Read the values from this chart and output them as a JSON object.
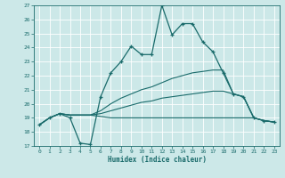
{
  "xlabel": "Humidex (Indice chaleur)",
  "xlim": [
    -0.5,
    23.5
  ],
  "ylim": [
    17,
    27
  ],
  "xticks": [
    0,
    1,
    2,
    3,
    4,
    5,
    6,
    7,
    8,
    9,
    10,
    11,
    12,
    13,
    14,
    15,
    16,
    17,
    18,
    19,
    20,
    21,
    22,
    23
  ],
  "yticks": [
    17,
    18,
    19,
    20,
    21,
    22,
    23,
    24,
    25,
    26,
    27
  ],
  "bg_color": "#cce8e8",
  "grid_color": "#b8d8d8",
  "line_color": "#1a6b6b",
  "lines": [
    {
      "x": [
        0,
        1,
        2,
        3,
        4,
        5,
        6,
        7,
        8,
        9,
        10,
        11,
        12,
        13,
        14,
        15,
        16,
        17,
        18,
        19,
        20,
        21,
        22,
        23
      ],
      "y": [
        18.5,
        19.0,
        19.3,
        19.0,
        17.2,
        17.1,
        20.5,
        22.2,
        23.0,
        24.1,
        23.5,
        23.5,
        27.0,
        24.9,
        25.7,
        25.7,
        24.4,
        23.7,
        22.2,
        20.7,
        20.5,
        19.0,
        18.8,
        18.7
      ],
      "marker": true
    },
    {
      "x": [
        0,
        1,
        2,
        3,
        4,
        5,
        6,
        7,
        8,
        9,
        10,
        11,
        12,
        13,
        14,
        15,
        16,
        17,
        18,
        19,
        20,
        21,
        22,
        23
      ],
      "y": [
        18.5,
        19.0,
        19.3,
        19.2,
        19.2,
        19.2,
        19.5,
        20.0,
        20.4,
        20.7,
        21.0,
        21.2,
        21.5,
        21.8,
        22.0,
        22.2,
        22.3,
        22.4,
        22.4,
        20.7,
        20.5,
        19.0,
        18.8,
        18.7
      ],
      "marker": false
    },
    {
      "x": [
        0,
        1,
        2,
        3,
        4,
        5,
        6,
        7,
        8,
        9,
        10,
        11,
        12,
        13,
        14,
        15,
        16,
        17,
        18,
        19,
        20,
        21,
        22,
        23
      ],
      "y": [
        18.5,
        19.0,
        19.3,
        19.2,
        19.2,
        19.2,
        19.3,
        19.5,
        19.7,
        19.9,
        20.1,
        20.2,
        20.4,
        20.5,
        20.6,
        20.7,
        20.8,
        20.9,
        20.9,
        20.7,
        20.5,
        19.0,
        18.8,
        18.7
      ],
      "marker": false
    },
    {
      "x": [
        0,
        1,
        2,
        3,
        4,
        5,
        6,
        7,
        8,
        9,
        10,
        11,
        12,
        13,
        14,
        15,
        16,
        17,
        18,
        19,
        20,
        21,
        22,
        23
      ],
      "y": [
        18.5,
        19.0,
        19.3,
        19.2,
        19.2,
        19.2,
        19.1,
        19.0,
        19.0,
        19.0,
        19.0,
        19.0,
        19.0,
        19.0,
        19.0,
        19.0,
        19.0,
        19.0,
        19.0,
        19.0,
        19.0,
        19.0,
        18.8,
        18.7
      ],
      "marker": false
    }
  ]
}
